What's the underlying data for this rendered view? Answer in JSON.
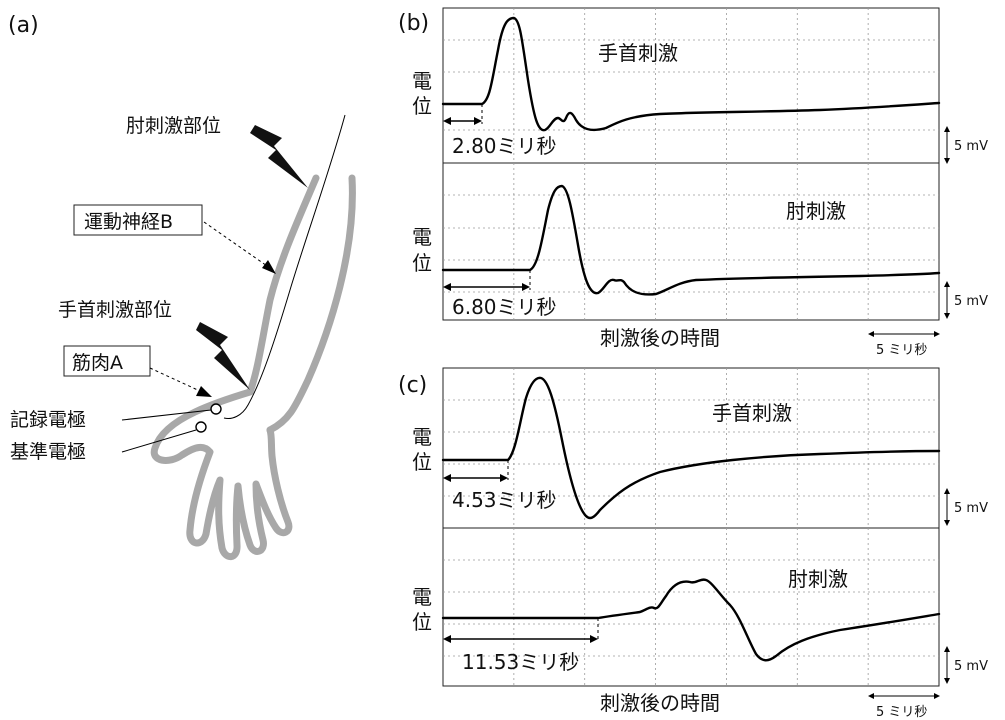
{
  "panel_a": {
    "letter": "(a)",
    "labels": {
      "elbow_site": "肘刺激部位",
      "motor_nerve": "運動神経B",
      "wrist_site": "手首刺激部位",
      "muscle": "筋肉A",
      "recording_electrode": "記録電極",
      "reference_electrode": "基準電極"
    },
    "colors": {
      "arm_outline": "#a8a8a8",
      "nerve": "#000000",
      "bolt": "#111111"
    },
    "icons": [
      "lightning-bolt-icon",
      "lightning-bolt-icon"
    ]
  },
  "panel_b": {
    "letter": "(b)",
    "time_axis_label": "刺激後の時間",
    "scale_bar_time": "5 ミリ秒",
    "traces": [
      {
        "stim_label": "手首刺激",
        "y_label": "電位",
        "latency_text": "2.80ミリ秒",
        "latency_ms": 2.8,
        "amp_scale": "5 mV"
      },
      {
        "stim_label": "肘刺激",
        "y_label": "電位",
        "latency_text": "6.80ミリ秒",
        "latency_ms": 6.8,
        "amp_scale": "5 mV"
      }
    ]
  },
  "panel_c": {
    "letter": "(c)",
    "time_axis_label": "刺激後の時間",
    "scale_bar_time": "5 ミリ秒",
    "traces": [
      {
        "stim_label": "手首刺激",
        "y_label": "電位",
        "latency_text": "4.53ミリ秒",
        "latency_ms": 4.53,
        "amp_scale": "5 mV"
      },
      {
        "stim_label": "肘刺激",
        "y_label": "電位",
        "latency_text": "11.53ミリ秒",
        "latency_ms": 11.53,
        "amp_scale": "5 mV"
      }
    ]
  }
}
